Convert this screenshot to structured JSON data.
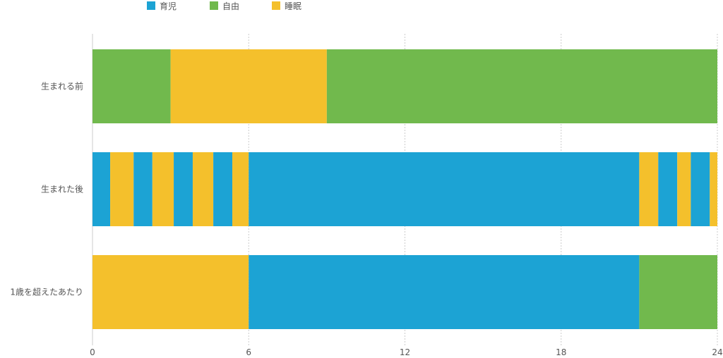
{
  "chart_data": {
    "type": "bar",
    "orientation": "horizontal-stacked-timeline",
    "title": "",
    "xlabel": "",
    "ylabel": "",
    "xlim": [
      0,
      24
    ],
    "xticks": [
      "0",
      "6",
      "12",
      "18",
      "24"
    ],
    "grid": true,
    "legend_position": "top",
    "legend": [
      {
        "name": "育児",
        "color": "#1ca3d4"
      },
      {
        "name": "自由",
        "color": "#71b94d"
      },
      {
        "name": "睡眠",
        "color": "#f4c02c"
      }
    ],
    "categories": [
      "生まれる前",
      "生まれた後",
      "1歳を超えたあたり"
    ],
    "rows": [
      {
        "category": "生まれる前",
        "segments": [
          {
            "series": "自由",
            "start": 0,
            "end": 3
          },
          {
            "series": "睡眠",
            "start": 3,
            "end": 9
          },
          {
            "series": "自由",
            "start": 9,
            "end": 24
          }
        ]
      },
      {
        "category": "生まれた後",
        "segments": [
          {
            "series": "育児",
            "start": 0,
            "end": 0.68
          },
          {
            "series": "睡眠",
            "start": 0.68,
            "end": 1.58
          },
          {
            "series": "育児",
            "start": 1.58,
            "end": 2.3
          },
          {
            "series": "睡眠",
            "start": 2.3,
            "end": 3.12
          },
          {
            "series": "育児",
            "start": 3.12,
            "end": 3.85
          },
          {
            "series": "睡眠",
            "start": 3.85,
            "end": 4.64
          },
          {
            "series": "育児",
            "start": 4.64,
            "end": 5.37
          },
          {
            "series": "睡眠",
            "start": 5.37,
            "end": 6
          },
          {
            "series": "育児",
            "start": 6,
            "end": 21
          },
          {
            "series": "睡眠",
            "start": 21,
            "end": 21.73
          },
          {
            "series": "育児",
            "start": 21.73,
            "end": 22.46
          },
          {
            "series": "睡眠",
            "start": 22.46,
            "end": 22.98
          },
          {
            "series": "育児",
            "start": 22.98,
            "end": 23.71
          },
          {
            "series": "睡眠",
            "start": 23.71,
            "end": 24
          }
        ]
      },
      {
        "category": "1歳を超えたあたり",
        "segments": [
          {
            "series": "睡眠",
            "start": 0,
            "end": 6
          },
          {
            "series": "育児",
            "start": 6,
            "end": 21
          },
          {
            "series": "自由",
            "start": 21,
            "end": 24
          }
        ]
      }
    ]
  }
}
